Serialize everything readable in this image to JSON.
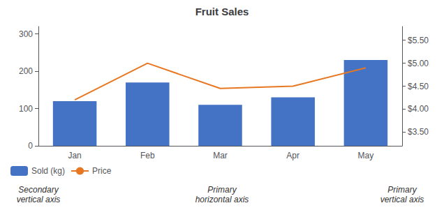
{
  "chart_data": {
    "type": "bar",
    "title": "Fruit Sales",
    "categories": [
      "Jan",
      "Feb",
      "Mar",
      "Apr",
      "May"
    ],
    "series": [
      {
        "name": "Sold (kg)",
        "type": "bar",
        "color": "#4472C4",
        "values": [
          120,
          170,
          110,
          130,
          230
        ]
      },
      {
        "name": "Price",
        "type": "line",
        "color": "#E87722",
        "axis": "y2",
        "marker": "none",
        "values": [
          4.2,
          5.0,
          4.45,
          4.5,
          4.9
        ]
      }
    ],
    "ylim": [
      0,
      320
    ],
    "yticks": [
      0,
      100,
      200,
      300
    ],
    "y2lim": [
      3.2,
      5.8
    ],
    "y2ticks": [
      {
        "value": 3.5,
        "label": "$3.50"
      },
      {
        "value": 4.0,
        "label": "$4.00"
      },
      {
        "value": 4.5,
        "label": "$4.50"
      },
      {
        "value": 5.0,
        "label": "$5.00"
      },
      {
        "value": 5.5,
        "label": "$5.50"
      }
    ],
    "grid": false,
    "legend": "bottom",
    "annotations": [
      "Secondary\nvertical axis",
      "Primary\nhorizontal axis",
      "Primary\nvertical axis"
    ]
  }
}
